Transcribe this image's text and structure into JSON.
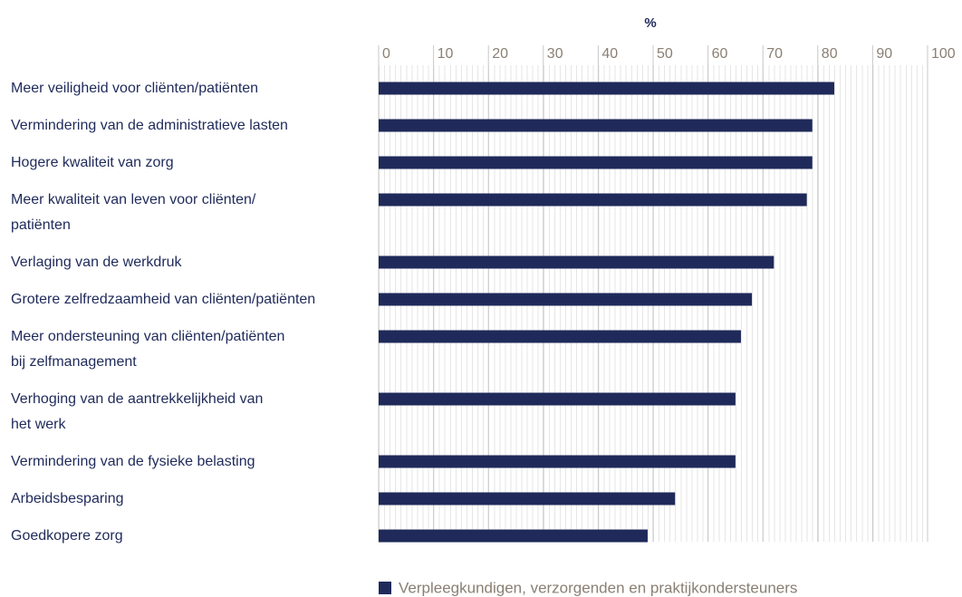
{
  "chart_data": {
    "type": "bar",
    "orientation": "horizontal",
    "title": "%",
    "categories": [
      "Meer veiligheid voor cliënten/patiënten",
      "Vermindering van de administratieve lasten",
      "Hogere kwaliteit van zorg",
      "Meer kwaliteit van leven voor cliënten/\npatiënten",
      "Verlaging van de werkdruk",
      "Grotere zelfredzaamheid van cliënten/patiënten",
      "Meer ondersteuning van cliënten/patiënten\nbij zelfmanagement",
      "Verhoging van de aantrekkelijkheid van\nhet werk",
      "Vermindering van de fysieke belasting",
      "Arbeidsbesparing",
      "Goedkopere zorg"
    ],
    "series": [
      {
        "name": "Verpleegkundigen, verzorgenden  en praktijkondersteuners",
        "color": "#1f2a5a",
        "values": [
          83,
          79,
          79,
          78,
          72,
          68,
          66,
          65,
          65,
          54,
          49
        ]
      }
    ],
    "xlim": [
      0,
      100
    ],
    "xticks": [
      0,
      10,
      20,
      30,
      40,
      50,
      60,
      70,
      80,
      90,
      100
    ],
    "grid": true,
    "legend": "bottom"
  }
}
